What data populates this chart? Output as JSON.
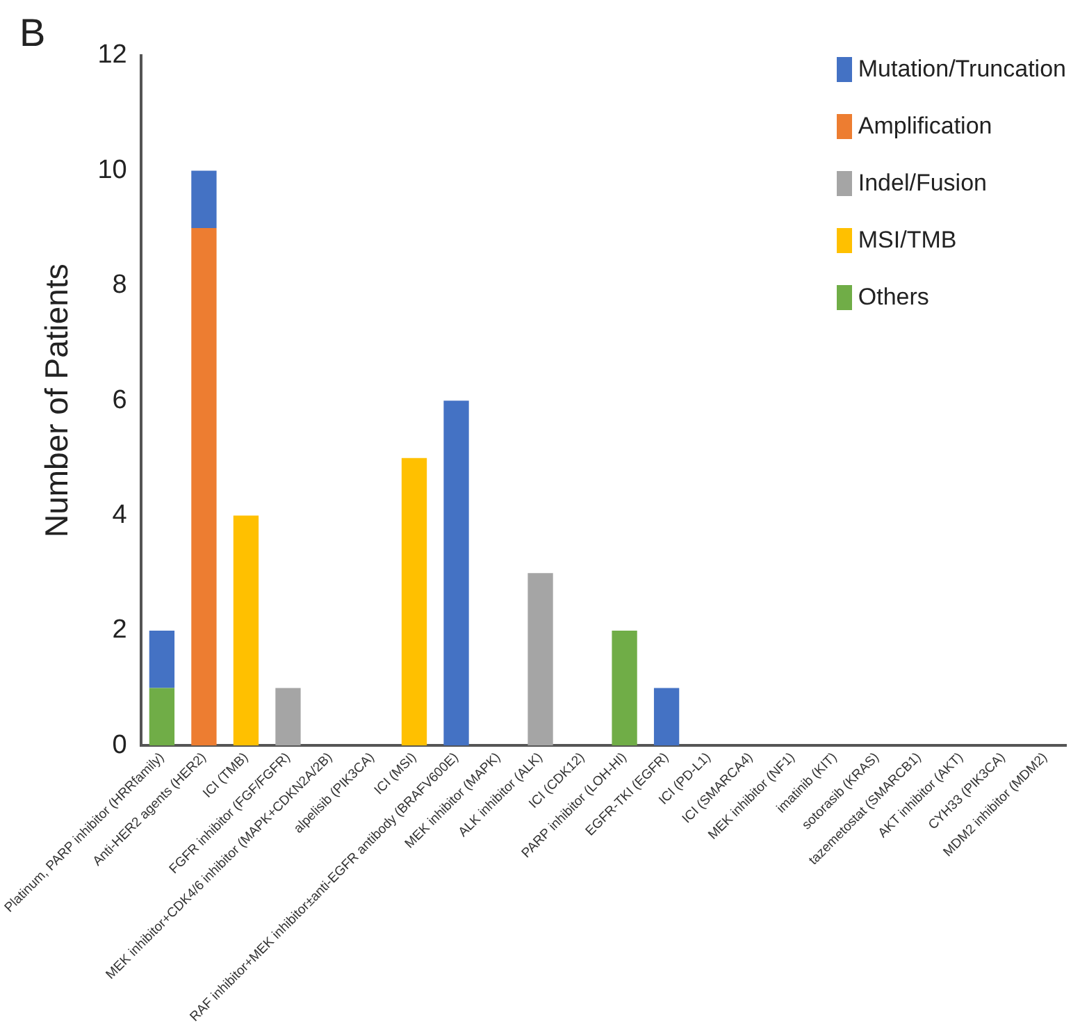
{
  "chart_data": {
    "type": "bar",
    "stacked": true,
    "ylabel": "Number of Patients",
    "annotations": [
      "B"
    ],
    "categories": [
      "Platinum, PARP inhibitor (HRRfamily)",
      "Anti-HER2 agents (HER2)",
      "ICI (TMB)",
      "FGFR inhibitor (FGF/FGFR)",
      "MEK inhibitor+CDK4/6 inhibitor (MAPK+CDKN2A/2B)",
      "alpelisib (PIK3CA)",
      "ICI (MSI)",
      "RAF inhibitor+MEK inhibitor±anti-EGFR antibody (BRAFV600E)",
      "MEK inhibitor (MAPK)",
      "ALK inhibitor (ALK)",
      "ICI (CDK12)",
      "PARP inhibitor (LOH-HI)",
      "EGFR-TKI (EGFR)",
      "ICI (PD-L1)",
      "ICI (SMARCA4)",
      "MEK inhibitor (NF1)",
      "imatinib (KIT)",
      "sotorasib (KRAS)",
      "tazemetostat (SMARCB1)",
      "AKT inhibitor (AKT)",
      "CYH33 (PIK3CA)",
      "MDM2 inhibitor (MDM2)"
    ],
    "series": [
      {
        "name": "Others",
        "color": "#70ad47",
        "values": [
          1,
          null,
          null,
          null,
          null,
          null,
          null,
          null,
          null,
          null,
          null,
          2,
          null,
          null,
          null,
          null,
          null,
          null,
          null,
          null,
          null,
          null
        ]
      },
      {
        "name": "MSI/TMB",
        "color": "#ffc000",
        "values": [
          null,
          null,
          4,
          null,
          null,
          null,
          5,
          null,
          null,
          null,
          null,
          null,
          null,
          null,
          null,
          null,
          null,
          null,
          null,
          null,
          null,
          null
        ]
      },
      {
        "name": "Indel/Fusion",
        "color": "#a5a5a5",
        "values": [
          null,
          null,
          null,
          1,
          null,
          null,
          null,
          null,
          null,
          3,
          null,
          null,
          null,
          null,
          null,
          null,
          null,
          null,
          null,
          null,
          null,
          null
        ]
      },
      {
        "name": "Amplification",
        "color": "#ed7d31",
        "values": [
          null,
          9,
          null,
          null,
          null,
          null,
          null,
          null,
          null,
          null,
          null,
          null,
          null,
          null,
          null,
          null,
          null,
          null,
          null,
          null,
          null,
          null
        ]
      },
      {
        "name": "Mutation/Truncation",
        "color": "#4472c4",
        "values": [
          1,
          1,
          null,
          null,
          null,
          null,
          null,
          6,
          null,
          null,
          null,
          null,
          1,
          null,
          null,
          null,
          null,
          null,
          null,
          null,
          null,
          null
        ]
      }
    ],
    "ylim": [
      0,
      12
    ],
    "yticks": [
      0,
      2,
      4,
      6,
      8,
      10,
      12
    ],
    "grid": false,
    "legend": "top right"
  }
}
